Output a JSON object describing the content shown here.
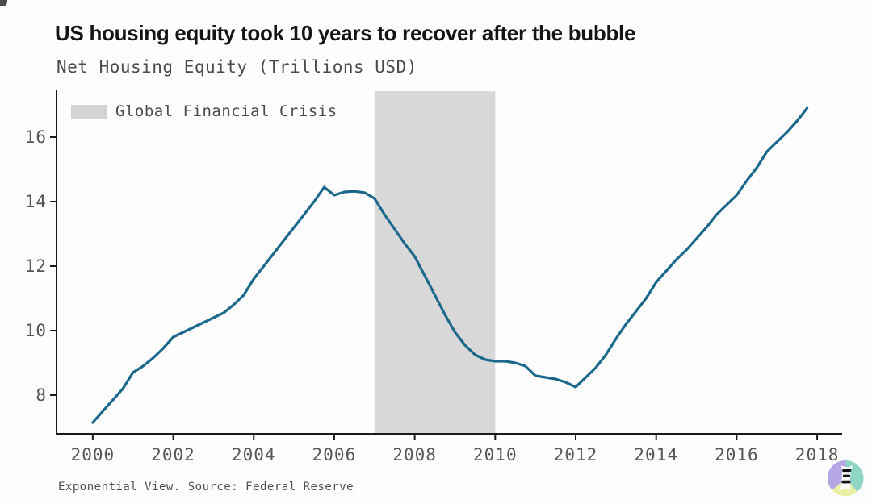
{
  "page": {
    "title": "US housing equity took 10 years to recover after the bubble",
    "subtitle": "Net Housing Equity (Trillions USD)",
    "footer": "Exponential View. Source: Federal Reserve"
  },
  "legend": {
    "label": "Global Financial Crisis",
    "swatch_color": "#d4d4d4"
  },
  "colors": {
    "line": "#1a698c",
    "region": "#d8d8d8",
    "axis": "#1a1a1a",
    "tick_text": "#565656",
    "title_text": "#141414",
    "muted_text": "#4a4a4a"
  },
  "chart_data": {
    "type": "line",
    "title": "US housing equity took 10 years to recover after the bubble",
    "subtitle": "Net Housing Equity (Trillions USD)",
    "series_name": "Net Housing Equity (Trillions USD)",
    "x": [
      2000.0,
      2000.25,
      2000.5,
      2000.75,
      2001.0,
      2001.25,
      2001.5,
      2001.75,
      2002.0,
      2002.25,
      2002.5,
      2002.75,
      2003.0,
      2003.25,
      2003.5,
      2003.75,
      2004.0,
      2004.25,
      2004.5,
      2004.75,
      2005.0,
      2005.25,
      2005.5,
      2005.75,
      2006.0,
      2006.25,
      2006.5,
      2006.75,
      2007.0,
      2007.25,
      2007.5,
      2007.75,
      2008.0,
      2008.25,
      2008.5,
      2008.75,
      2009.0,
      2009.25,
      2009.5,
      2009.75,
      2010.0,
      2010.25,
      2010.5,
      2010.75,
      2011.0,
      2011.25,
      2011.5,
      2011.75,
      2012.0,
      2012.25,
      2012.5,
      2012.75,
      2013.0,
      2013.25,
      2013.5,
      2013.75,
      2014.0,
      2014.25,
      2014.5,
      2014.75,
      2015.0,
      2015.25,
      2015.5,
      2015.75,
      2016.0,
      2016.25,
      2016.5,
      2016.75,
      2017.0,
      2017.25,
      2017.5,
      2017.75
    ],
    "y": [
      7.15,
      7.5,
      7.85,
      8.2,
      8.7,
      8.9,
      9.15,
      9.45,
      9.8,
      9.95,
      10.1,
      10.25,
      10.4,
      10.55,
      10.8,
      11.1,
      11.6,
      12.0,
      12.4,
      12.8,
      13.2,
      13.6,
      14.0,
      14.45,
      14.2,
      14.3,
      14.32,
      14.28,
      14.1,
      13.6,
      13.15,
      12.7,
      12.3,
      11.7,
      11.1,
      10.5,
      9.95,
      9.55,
      9.25,
      9.1,
      9.05,
      9.05,
      9.0,
      8.9,
      8.6,
      8.55,
      8.5,
      8.4,
      8.25,
      8.55,
      8.85,
      9.25,
      9.75,
      10.2,
      10.6,
      11.0,
      11.5,
      11.85,
      12.2,
      12.5,
      12.85,
      13.2,
      13.6,
      13.9,
      14.2,
      14.65,
      15.05,
      15.55,
      15.85,
      16.15,
      16.5,
      16.9
    ],
    "x_ticks": [
      2000,
      2002,
      2004,
      2006,
      2008,
      2010,
      2012,
      2014,
      2016,
      2018
    ],
    "y_ticks": [
      8,
      10,
      12,
      14,
      16
    ],
    "xlim": [
      1999.1,
      2018.56
    ],
    "ylim": [
      6.8,
      17.45
    ],
    "xlabel": "",
    "ylabel": "Net Housing Equity (Trillions USD)",
    "grid": false,
    "legend_position": "top-left",
    "line_color": "#1a698c",
    "shaded_region": {
      "label": "Global Financial Crisis",
      "x_start": 2007,
      "x_end": 2010,
      "color": "#d8d8d8"
    }
  },
  "logo": {
    "name": "Exponential View logo",
    "sector_mint": "#8ed5c6",
    "sector_yellow": "#e9efa5",
    "sector_purple": "#b5a6e6",
    "column_white": "#fbfbfb",
    "stripe_black": "#111111"
  }
}
